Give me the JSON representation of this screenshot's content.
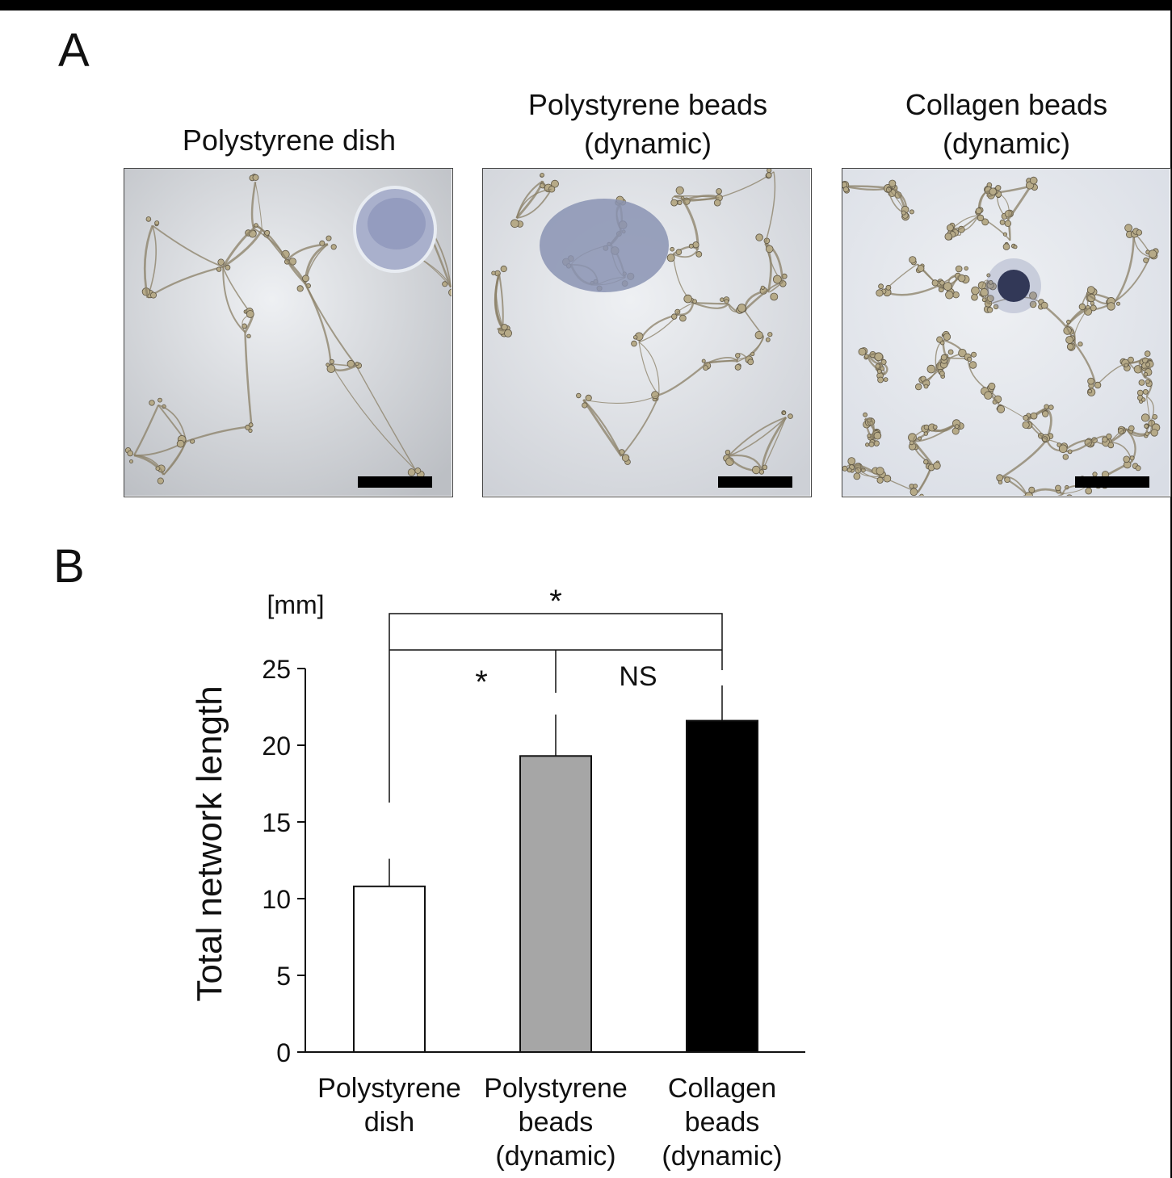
{
  "panel_a": {
    "label": "A",
    "images": [
      {
        "title": "Polystyrene dish",
        "style": "sparse",
        "blob": "ring",
        "tint": "#bcbfc4"
      },
      {
        "title": "Polystyrene beads\n(dynamic)",
        "style": "medium",
        "blob": "oval",
        "tint": "#cdd0d6"
      },
      {
        "title": "Collagen beads\n(dynamic)",
        "style": "dense",
        "blob": "dot",
        "tint": "#d9dde5"
      }
    ]
  },
  "panel_b": {
    "label": "B"
  },
  "chart_data": {
    "type": "bar",
    "ylabel": "Total network length",
    "yunit": "[mm]",
    "ylim": [
      0,
      25
    ],
    "yticks": [
      0,
      5,
      10,
      15,
      20,
      25
    ],
    "categories": [
      "Polystyrene\ndish",
      "Polystyrene\nbeads\n(dynamic)",
      "Collagen\nbeads\n(dynamic)"
    ],
    "values": [
      10.8,
      19.3,
      21.6
    ],
    "errors": [
      1.8,
      2.7,
      2.3
    ],
    "colors": [
      "#ffffff",
      "#a6a6a6",
      "#000000"
    ],
    "significance": [
      {
        "from": 0,
        "to": 2,
        "label": "*"
      },
      {
        "from": 0,
        "to": 1,
        "label": "*"
      },
      {
        "from": 1,
        "to": 2,
        "label": "NS"
      }
    ]
  }
}
